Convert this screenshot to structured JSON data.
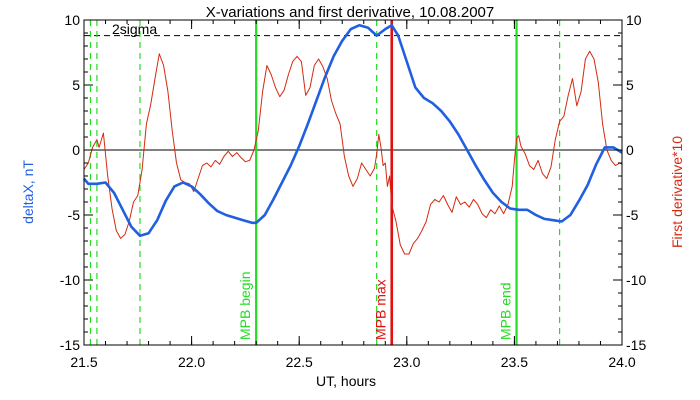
{
  "chart_data": {
    "type": "line",
    "title": "X-variations and first derivative, 10.08.2007",
    "xlabel": "UT, hours",
    "ylabel_left": "deltaX, nT",
    "ylabel_right": "First derivative*10",
    "xlim": [
      21.5,
      24.0
    ],
    "ylim": [
      -15,
      10
    ],
    "x_ticks": [
      "21.5",
      "22.0",
      "22.5",
      "23.0",
      "23.5",
      "24.0"
    ],
    "y_ticks_left": [
      "-15",
      "-10",
      "-5",
      "0",
      "5",
      "10"
    ],
    "y_ticks_right": [
      "-15",
      "-10",
      "-5",
      "0",
      "5",
      "10"
    ],
    "sigma_label": "2sigma",
    "sigma_level": 8.8,
    "zero_line": 0,
    "colors": {
      "deltaX": "#1f5fe0",
      "derivative": "#d42a10",
      "markers_green": "#22dd22",
      "marker_red": "#e01010",
      "axis": "#000000"
    },
    "series": [
      {
        "key": "deltaX",
        "values": [
          [
            21.5,
            -2.2
          ],
          [
            21.52,
            -2.6
          ],
          [
            21.56,
            -2.6
          ],
          [
            21.6,
            -2.5
          ],
          [
            21.64,
            -3.3
          ],
          [
            21.68,
            -4.6
          ],
          [
            21.72,
            -5.9
          ],
          [
            21.76,
            -6.6
          ],
          [
            21.8,
            -6.4
          ],
          [
            21.84,
            -5.4
          ],
          [
            21.88,
            -3.9
          ],
          [
            21.92,
            -2.8
          ],
          [
            21.96,
            -2.5
          ],
          [
            22.0,
            -2.8
          ],
          [
            22.04,
            -3.4
          ],
          [
            22.08,
            -4.1
          ],
          [
            22.12,
            -4.7
          ],
          [
            22.16,
            -5.0
          ],
          [
            22.2,
            -5.2
          ],
          [
            22.24,
            -5.4
          ],
          [
            22.28,
            -5.6
          ],
          [
            22.3,
            -5.6
          ],
          [
            22.34,
            -5.0
          ],
          [
            22.38,
            -3.8
          ],
          [
            22.42,
            -2.5
          ],
          [
            22.46,
            -1.2
          ],
          [
            22.5,
            0.3
          ],
          [
            22.54,
            2.0
          ],
          [
            22.58,
            3.8
          ],
          [
            22.62,
            5.6
          ],
          [
            22.66,
            7.2
          ],
          [
            22.7,
            8.4
          ],
          [
            22.74,
            9.3
          ],
          [
            22.78,
            9.6
          ],
          [
            22.82,
            9.4
          ],
          [
            22.86,
            8.8
          ],
          [
            22.9,
            9.3
          ],
          [
            22.93,
            9.6
          ],
          [
            22.96,
            8.8
          ],
          [
            23.0,
            6.8
          ],
          [
            23.04,
            4.8
          ],
          [
            23.08,
            4.0
          ],
          [
            23.12,
            3.6
          ],
          [
            23.16,
            3.0
          ],
          [
            23.2,
            2.2
          ],
          [
            23.24,
            1.2
          ],
          [
            23.28,
            0.0
          ],
          [
            23.32,
            -1.2
          ],
          [
            23.36,
            -2.3
          ],
          [
            23.4,
            -3.3
          ],
          [
            23.44,
            -4.0
          ],
          [
            23.48,
            -4.5
          ],
          [
            23.52,
            -4.6
          ],
          [
            23.56,
            -4.6
          ],
          [
            23.6,
            -5.0
          ],
          [
            23.64,
            -5.3
          ],
          [
            23.68,
            -5.4
          ],
          [
            23.72,
            -5.5
          ],
          [
            23.76,
            -5.0
          ],
          [
            23.8,
            -3.9
          ],
          [
            23.84,
            -2.7
          ],
          [
            23.88,
            -1.1
          ],
          [
            23.92,
            0.2
          ],
          [
            23.96,
            0.2
          ],
          [
            24.0,
            -0.2
          ]
        ]
      },
      {
        "key": "derivative",
        "values": [
          [
            21.5,
            -1.5
          ],
          [
            21.52,
            -1.0
          ],
          [
            21.54,
            0.2
          ],
          [
            21.56,
            0.8
          ],
          [
            21.57,
            0.2
          ],
          [
            21.59,
            1.3
          ],
          [
            21.61,
            -2.0
          ],
          [
            21.63,
            -4.5
          ],
          [
            21.65,
            -6.2
          ],
          [
            21.67,
            -6.8
          ],
          [
            21.69,
            -6.5
          ],
          [
            21.71,
            -5.5
          ],
          [
            21.73,
            -4.0
          ],
          [
            21.75,
            -3.5
          ],
          [
            21.77,
            -1.5
          ],
          [
            21.79,
            2.0
          ],
          [
            21.81,
            3.5
          ],
          [
            21.83,
            5.5
          ],
          [
            21.85,
            7.4
          ],
          [
            21.87,
            6.5
          ],
          [
            21.89,
            4.5
          ],
          [
            21.91,
            1.5
          ],
          [
            21.93,
            -1.0
          ],
          [
            21.95,
            -2.3
          ],
          [
            21.97,
            -2.5
          ],
          [
            21.99,
            -2.6
          ],
          [
            22.01,
            -3.2
          ],
          [
            22.03,
            -2.2
          ],
          [
            22.05,
            -1.2
          ],
          [
            22.07,
            -1.0
          ],
          [
            22.09,
            -1.3
          ],
          [
            22.11,
            -0.8
          ],
          [
            22.13,
            -1.1
          ],
          [
            22.15,
            -0.5
          ],
          [
            22.17,
            -0.1
          ],
          [
            22.19,
            -0.5
          ],
          [
            22.21,
            -0.2
          ],
          [
            22.23,
            -0.6
          ],
          [
            22.25,
            -0.9
          ],
          [
            22.27,
            -0.8
          ],
          [
            22.29,
            0.0
          ],
          [
            22.31,
            1.5
          ],
          [
            22.33,
            4.5
          ],
          [
            22.35,
            6.5
          ],
          [
            22.37,
            5.8
          ],
          [
            22.39,
            4.8
          ],
          [
            22.41,
            4.1
          ],
          [
            22.43,
            4.6
          ],
          [
            22.45,
            5.8
          ],
          [
            22.47,
            6.8
          ],
          [
            22.49,
            7.2
          ],
          [
            22.51,
            6.8
          ],
          [
            22.53,
            4.2
          ],
          [
            22.55,
            4.8
          ],
          [
            22.57,
            6.5
          ],
          [
            22.59,
            7.0
          ],
          [
            22.61,
            6.4
          ],
          [
            22.63,
            5.5
          ],
          [
            22.65,
            3.8
          ],
          [
            22.67,
            2.8
          ],
          [
            22.69,
            2.0
          ],
          [
            22.71,
            -0.5
          ],
          [
            22.73,
            -2.0
          ],
          [
            22.75,
            -2.8
          ],
          [
            22.77,
            -2.2
          ],
          [
            22.79,
            -1.0
          ],
          [
            22.81,
            -1.5
          ],
          [
            22.83,
            -2.0
          ],
          [
            22.85,
            -1.4
          ],
          [
            22.86,
            -0.3
          ],
          [
            22.87,
            1.2
          ],
          [
            22.88,
            0.2
          ],
          [
            22.89,
            -1.2
          ],
          [
            22.9,
            -1.0
          ],
          [
            22.91,
            -2.8
          ],
          [
            22.92,
            -2.0
          ],
          [
            22.93,
            -4.2
          ],
          [
            22.95,
            -5.5
          ],
          [
            22.97,
            -7.3
          ],
          [
            22.99,
            -8.0
          ],
          [
            23.01,
            -8.0
          ],
          [
            23.03,
            -7.2
          ],
          [
            23.05,
            -6.8
          ],
          [
            23.07,
            -6.2
          ],
          [
            23.09,
            -5.5
          ],
          [
            23.11,
            -4.2
          ],
          [
            23.13,
            -3.8
          ],
          [
            23.15,
            -4.0
          ],
          [
            23.17,
            -3.5
          ],
          [
            23.19,
            -4.2
          ],
          [
            23.21,
            -4.8
          ],
          [
            23.23,
            -3.6
          ],
          [
            23.25,
            -4.2
          ],
          [
            23.27,
            -4.0
          ],
          [
            23.29,
            -4.4
          ],
          [
            23.31,
            -3.8
          ],
          [
            23.33,
            -4.2
          ],
          [
            23.35,
            -4.9
          ],
          [
            23.37,
            -5.2
          ],
          [
            23.39,
            -4.6
          ],
          [
            23.41,
            -4.9
          ],
          [
            23.43,
            -4.3
          ],
          [
            23.45,
            -4.9
          ],
          [
            23.47,
            -4.2
          ],
          [
            23.49,
            -2.8
          ],
          [
            23.5,
            -0.8
          ],
          [
            23.51,
            0.9
          ],
          [
            23.52,
            1.1
          ],
          [
            23.53,
            0.3
          ],
          [
            23.55,
            -0.3
          ],
          [
            23.57,
            -1.2
          ],
          [
            23.59,
            -1.5
          ],
          [
            23.61,
            -0.8
          ],
          [
            23.63,
            -1.8
          ],
          [
            23.65,
            -2.2
          ],
          [
            23.67,
            -1.3
          ],
          [
            23.69,
            0.8
          ],
          [
            23.71,
            2.2
          ],
          [
            23.73,
            2.6
          ],
          [
            23.75,
            4.2
          ],
          [
            23.77,
            5.5
          ],
          [
            23.79,
            3.4
          ],
          [
            23.81,
            4.5
          ],
          [
            23.83,
            7.0
          ],
          [
            23.85,
            7.6
          ],
          [
            23.87,
            7.0
          ],
          [
            23.89,
            5.2
          ],
          [
            23.91,
            2.0
          ],
          [
            23.93,
            0.0
          ],
          [
            23.95,
            -0.8
          ],
          [
            23.97,
            -1.2
          ],
          [
            23.99,
            -1.0
          ],
          [
            24.0,
            -1.1
          ]
        ]
      }
    ],
    "markers": [
      {
        "x": 21.53,
        "style": "green-dashed"
      },
      {
        "x": 21.56,
        "style": "green-dashed"
      },
      {
        "x": 21.76,
        "style": "green-dashed"
      },
      {
        "x": 22.3,
        "style": "green-solid",
        "label": "MPB begin"
      },
      {
        "x": 22.86,
        "style": "green-dashed"
      },
      {
        "x": 22.93,
        "style": "red-solid",
        "label": "MPB max"
      },
      {
        "x": 23.51,
        "style": "green-solid",
        "label": "MPB end"
      },
      {
        "x": 23.71,
        "style": "green-dashed"
      }
    ]
  }
}
